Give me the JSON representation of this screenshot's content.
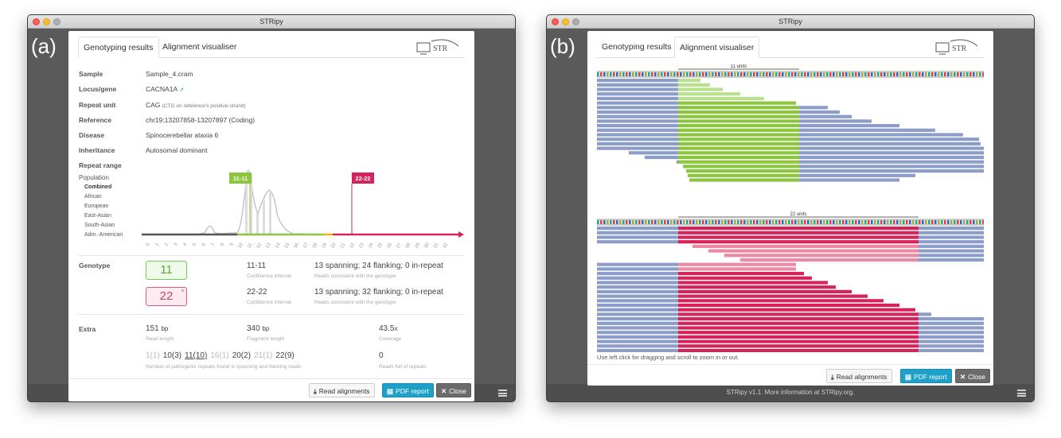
{
  "app_title": "STRipy",
  "panel_a": {
    "letter": "(a)",
    "tabs": [
      "Genotyping results",
      "Alignment visualiser"
    ],
    "fields": {
      "sample_label": "Sample",
      "sample_value": "Sample_4.cram",
      "locus_label": "Locus/gene",
      "locus_value": "CACNA1A",
      "unit_label": "Repeat unit",
      "unit_value": "CAG",
      "unit_note": "(CTG on reference's positive-strand)",
      "ref_label": "Reference",
      "ref_value": "chr19:13207858-13207897 (Coding)",
      "disease_label": "Disease",
      "disease_value": "Spinocerebellar ataxia 6",
      "inh_label": "Inheritance",
      "inh_value": "Autosomal dominant",
      "range_label": "Repeat range"
    },
    "population": {
      "title": "Population",
      "items": [
        "Combined",
        "African",
        "European",
        "East-Asian",
        "South-Asian",
        "Adm.-American"
      ]
    },
    "chart": {
      "flag_green": "11-11",
      "flag_red": "22-22",
      "ticks": [
        "0",
        "1",
        "2",
        "3",
        "4",
        "5",
        "6",
        "7",
        "8",
        "9",
        "10",
        "11",
        "12",
        "13",
        "14",
        "15",
        "16",
        "17",
        "18",
        "19",
        "20",
        "21",
        "22",
        "23",
        "24",
        "25",
        "26",
        "27",
        "28",
        "29",
        "30",
        "31",
        "32"
      ]
    },
    "genotype": {
      "label": "Genotype",
      "allele1": "11",
      "allele1_ci": "11-11",
      "allele1_ci_cap": "Confidence interval",
      "allele1_reads": "13 spanning; 24 flanking; 0 in-repeat",
      "allele1_reads_cap": "Reads consistent with the genotype",
      "allele2": "22",
      "allele2_mark": "*",
      "allele2_ci": "22-22",
      "allele2_ci_cap": "Confidence interval",
      "allele2_reads": "13 spanning; 32 flanking; 0 in-repeat",
      "allele2_reads_cap": "Reads consistent with the genotype"
    },
    "extra": {
      "label": "Extra",
      "read_length": "151",
      "read_length_unit": "bp",
      "read_length_cap": "Read length",
      "fragment_length": "340",
      "fragment_length_unit": "bp",
      "fragment_length_cap": "Fragment length",
      "coverage": "43.5",
      "coverage_unit": "x",
      "coverage_cap": "Coverage",
      "repeat_counts": [
        {
          "n": "1",
          "c": "(1)"
        },
        {
          "n": "10",
          "c": "(3)"
        },
        {
          "n": "11",
          "c": "(10)"
        },
        {
          "n": "16",
          "c": "(1)"
        },
        {
          "n": "20",
          "c": "(2)"
        },
        {
          "n": "21",
          "c": "(1)"
        },
        {
          "n": "22",
          "c": "(9)"
        }
      ],
      "repeat_counts_cap": "Number of pathogenic repeats found in spanning and flanking reads",
      "full_reads": "0",
      "full_reads_cap": "Reads full of repeats"
    },
    "buttons": {
      "read": "Read alignments",
      "pdf": "PDF report",
      "close": "Close"
    }
  },
  "panel_b": {
    "letter": "(b)",
    "tabs": [
      "Genotyping results",
      "Alignment visualiser"
    ],
    "ruler1": "11 units",
    "ruler2": "22 units",
    "hint": "Use left click for dragging and scroll to zoom in or out.",
    "buttons": {
      "read": "Read alignments",
      "pdf": "PDF report",
      "close": "Close"
    },
    "footer": "STRipy v1.1. More information at STRipy.org."
  },
  "colors": {
    "green": "#8cc63f",
    "red": "#d6245a",
    "blue": "#8b9dc8",
    "cyan": "#1fa0c8"
  }
}
